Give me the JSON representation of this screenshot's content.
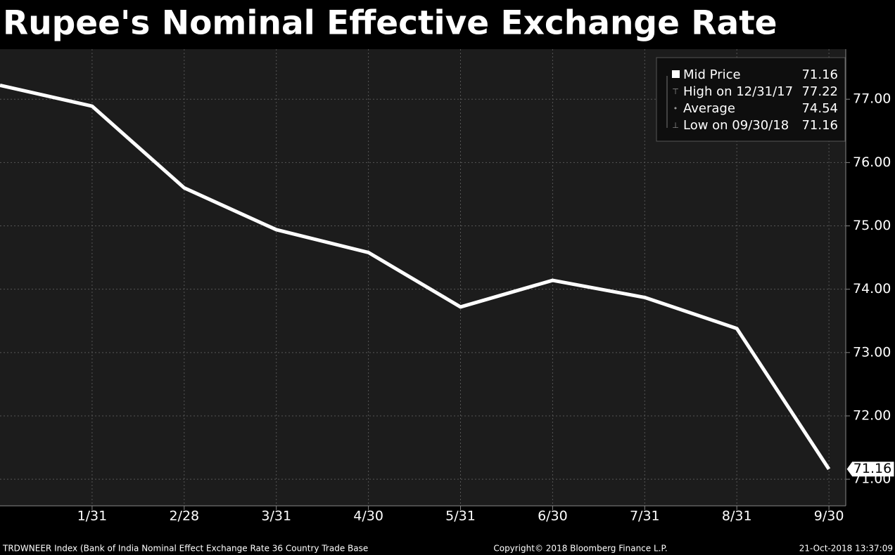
{
  "chart_data": {
    "type": "line",
    "title": "Rupee's Nominal Effective Exchange Rate",
    "categories": [
      null,
      "1/31",
      "2/28",
      "3/31",
      "4/30",
      "5/31",
      "6/30",
      "7/31",
      "8/31",
      "9/30"
    ],
    "series": [
      {
        "name": "Mid Price",
        "color": "#ffffff",
        "values": [
          77.22,
          76.89,
          75.6,
          74.94,
          74.58,
          73.72,
          74.14,
          73.87,
          73.38,
          71.16
        ]
      }
    ],
    "ylim": [
      70.58,
      77.79
    ],
    "yticks": [
      {
        "value": 71,
        "label": "71.00"
      },
      {
        "value": 72,
        "label": "72.00"
      },
      {
        "value": 73,
        "label": "73.00"
      },
      {
        "value": 74,
        "label": "74.00"
      },
      {
        "value": 75,
        "label": "75.00"
      },
      {
        "value": 76,
        "label": "76.00"
      },
      {
        "value": 77,
        "label": "77.00"
      }
    ],
    "grid": true,
    "legend_stats": [
      {
        "label": "High on 12/31/17",
        "value": 77.22
      },
      {
        "label": "Average",
        "value": 74.54
      },
      {
        "label": "Low on 09/30/18",
        "value": 71.16
      }
    ],
    "footer": {
      "source": "TRDWNEER Index (Bank of India Nominal Effect Exchange Rate 36 Country Trade Base",
      "copyright": "Copyright© 2018 Bloomberg Finance L.P.",
      "timestamp": "21-Oct-2018 13:37:09"
    }
  }
}
